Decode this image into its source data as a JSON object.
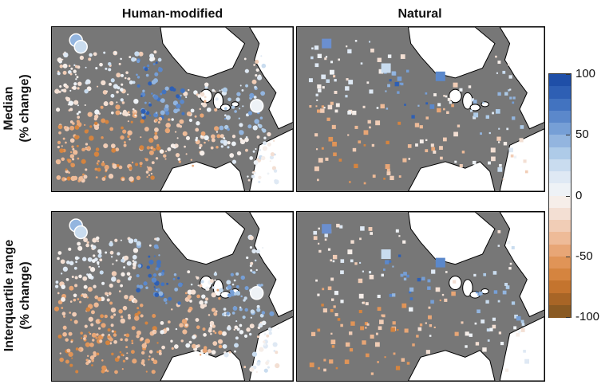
{
  "columns": [
    "Human-modified",
    "Natural"
  ],
  "rows": [
    {
      "line1": "Median",
      "line2": "(% change)"
    },
    {
      "line1": "Interquartile range",
      "line2": "(% change)"
    }
  ],
  "colorbar": {
    "ticks": [
      "100",
      "50",
      "0",
      "-50",
      "-100"
    ],
    "tick_values": [
      100,
      50,
      0,
      -50,
      -100
    ],
    "range": [
      -100,
      100
    ],
    "colors": [
      "#1f4fa8",
      "#2e5fb4",
      "#4273c0",
      "#5b88cb",
      "#769fd6",
      "#93b5df",
      "#aecbe8",
      "#c9dcef",
      "#dfe9f4",
      "#eef2f6",
      "#f6eee9",
      "#f3dfd3",
      "#f1cdb6",
      "#eebb98",
      "#e8a676",
      "#e09457",
      "#d5843f",
      "#c4742e",
      "#a86526",
      "#8a5a23"
    ]
  },
  "marker_legend": {
    "human_modified": "circle",
    "natural": "square"
  },
  "colors": {
    "land": "#777777",
    "outside": "#ffffff",
    "coast": "#000000"
  }
}
